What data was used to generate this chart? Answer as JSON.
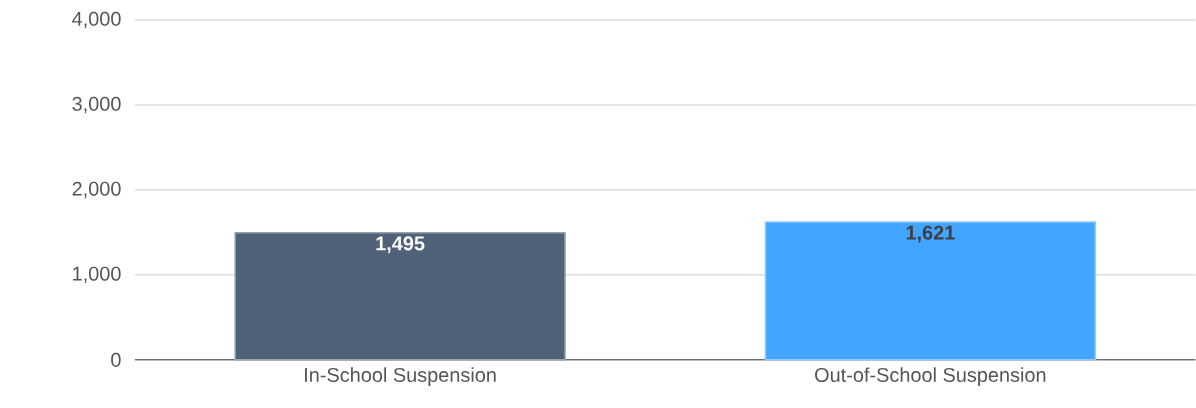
{
  "chart_data": {
    "type": "bar",
    "categories": [
      "In-School Suspension",
      "Out-of-School Suspension"
    ],
    "values": [
      1495,
      1621
    ],
    "colors": [
      "#4f6278",
      "#42a5ff"
    ],
    "value_labels": [
      "1,495",
      "1,621"
    ],
    "ylim": [
      0,
      4000
    ],
    "yticks": [
      {
        "value": 0,
        "label": "0"
      },
      {
        "value": 1000,
        "label": "1,000"
      },
      {
        "value": 2000,
        "label": "2,000"
      },
      {
        "value": 3000,
        "label": "3,000"
      },
      {
        "value": 4000,
        "label": "4,000"
      }
    ],
    "grid": "y"
  }
}
